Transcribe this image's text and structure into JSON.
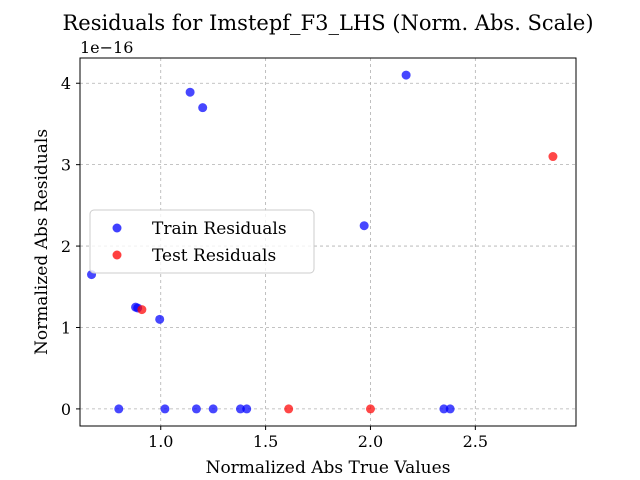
{
  "chart_data": {
    "type": "scatter",
    "title": "Residuals for Imstepf_F3_LHS (Norm. Abs. Scale)",
    "xlabel": "Normalized Abs True Values",
    "ylabel": "Normalized Abs Residuals",
    "y_scale_label": "1e−16",
    "xlim": [
      0.615,
      2.98
    ],
    "ylim": [
      -0.21,
      4.31
    ],
    "xticks": [
      1.0,
      1.5,
      2.0,
      2.5
    ],
    "xtick_labels": [
      "1.0",
      "1.5",
      "2.0",
      "2.5"
    ],
    "yticks": [
      0,
      1,
      2,
      3,
      4
    ],
    "ytick_labels": [
      "0",
      "1",
      "2",
      "3",
      "4"
    ],
    "grid": true,
    "legend_position": "center-left",
    "series": [
      {
        "name": "Train Residuals",
        "color": "#0000ff",
        "points": [
          {
            "x": 0.67,
            "y": 1.65
          },
          {
            "x": 0.88,
            "y": 1.25
          },
          {
            "x": 0.89,
            "y": 1.24
          },
          {
            "x": 0.995,
            "y": 1.1
          },
          {
            "x": 1.14,
            "y": 3.89
          },
          {
            "x": 1.2,
            "y": 3.7
          },
          {
            "x": 1.97,
            "y": 2.25
          },
          {
            "x": 2.17,
            "y": 4.1
          },
          {
            "x": 0.8,
            "y": 0.0
          },
          {
            "x": 1.02,
            "y": 0.0
          },
          {
            "x": 1.17,
            "y": 0.0
          },
          {
            "x": 1.25,
            "y": 0.0
          },
          {
            "x": 1.38,
            "y": 0.0
          },
          {
            "x": 1.41,
            "y": 0.0
          },
          {
            "x": 2.35,
            "y": 0.0
          },
          {
            "x": 2.38,
            "y": 0.0
          }
        ]
      },
      {
        "name": "Test Residuals",
        "color": "#ff0000",
        "points": [
          {
            "x": 0.91,
            "y": 1.22
          },
          {
            "x": 1.61,
            "y": 0.0
          },
          {
            "x": 2.0,
            "y": 0.0
          },
          {
            "x": 2.87,
            "y": 3.1
          }
        ]
      }
    ]
  }
}
